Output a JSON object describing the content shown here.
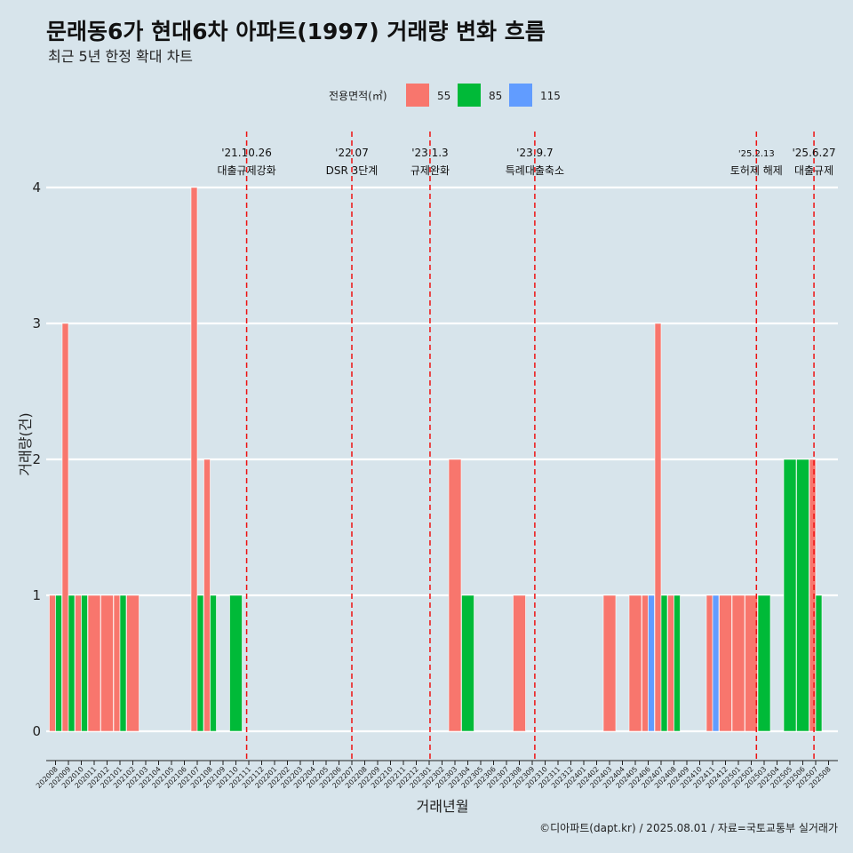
{
  "chart_data": {
    "type": "bar",
    "title": "문래동6가 현대6차 아파트(1997) 거래량 변화 흐름",
    "subtitle": "최근 5년 한정 확대 차트",
    "xlabel": "거래년월",
    "ylabel": "거래량(건)",
    "caption": "©디아파트(dapt.kr) / 2025.08.01 / 자료=국토교통부 실거래가",
    "ylim": [
      0,
      4
    ],
    "yticks": [
      0,
      1,
      2,
      3,
      4
    ],
    "legend": {
      "title": "전용면적(㎡)",
      "position": "top",
      "entries": [
        {
          "label": "55",
          "color": "#f8766d"
        },
        {
          "label": "85",
          "color": "#00ba38"
        },
        {
          "label": "115",
          "color": "#619cff"
        }
      ]
    },
    "categories": [
      "202008",
      "202009",
      "202010",
      "202011",
      "202012",
      "202101",
      "202102",
      "202103",
      "202104",
      "202105",
      "202106",
      "202107",
      "202108",
      "202109",
      "202110",
      "202111",
      "202112",
      "202201",
      "202202",
      "202203",
      "202204",
      "202205",
      "202206",
      "202207",
      "202208",
      "202209",
      "202210",
      "202211",
      "202212",
      "202301",
      "202302",
      "202303",
      "202304",
      "202305",
      "202306",
      "202307",
      "202308",
      "202309",
      "202310",
      "202311",
      "202312",
      "202401",
      "202402",
      "202403",
      "202404",
      "202405",
      "202406",
      "202407",
      "202408",
      "202409",
      "202410",
      "202411",
      "202412",
      "202501",
      "202502",
      "202503",
      "202504",
      "202505",
      "202506",
      "202507",
      "202508"
    ],
    "series": [
      {
        "name": "55",
        "values": [
          1,
          3,
          1,
          1,
          1,
          1,
          1,
          0,
          0,
          0,
          0,
          4,
          2,
          0,
          0,
          0,
          0,
          0,
          0,
          0,
          0,
          0,
          0,
          0,
          0,
          0,
          0,
          0,
          0,
          0,
          0,
          2,
          0,
          0,
          0,
          0,
          1,
          0,
          0,
          0,
          0,
          0,
          0,
          1,
          0,
          1,
          1,
          3,
          1,
          0,
          0,
          1,
          1,
          1,
          1,
          0,
          0,
          0,
          0,
          2,
          0
        ]
      },
      {
        "name": "85",
        "values": [
          1,
          1,
          1,
          0,
          0,
          1,
          0,
          0,
          0,
          0,
          0,
          1,
          1,
          0,
          1,
          0,
          0,
          0,
          0,
          0,
          0,
          0,
          0,
          0,
          0,
          0,
          0,
          0,
          0,
          0,
          0,
          0,
          1,
          0,
          0,
          0,
          0,
          0,
          0,
          0,
          0,
          0,
          0,
          0,
          0,
          0,
          0,
          1,
          1,
          0,
          0,
          0,
          0,
          0,
          0,
          1,
          0,
          2,
          2,
          1,
          0
        ]
      },
      {
        "name": "115",
        "values": [
          0,
          0,
          0,
          0,
          0,
          0,
          0,
          0,
          0,
          0,
          0,
          0,
          0,
          0,
          0,
          0,
          0,
          0,
          0,
          0,
          0,
          0,
          0,
          0,
          0,
          0,
          0,
          0,
          0,
          0,
          0,
          0,
          0,
          0,
          0,
          0,
          0,
          0,
          0,
          0,
          0,
          0,
          0,
          0,
          0,
          0,
          1,
          0,
          0,
          0,
          0,
          1,
          0,
          0,
          0,
          0,
          0,
          0,
          0,
          0,
          0
        ]
      }
    ],
    "events": [
      {
        "date": "2021-10-26",
        "line1": "'21.10.26",
        "line2": "대출규제강화"
      },
      {
        "date": "2022-07-01",
        "line1": "'22.07",
        "line2": "DSR 3단계"
      },
      {
        "date": "2023-01-03",
        "line1": "'23.1.3",
        "line2": "규제완화"
      },
      {
        "date": "2023-09-07",
        "line1": "'23.9.7",
        "line2": "특례대출축소"
      },
      {
        "date": "2025-02-13",
        "line1": "'25.2.13",
        "line2": "토허제 해제"
      },
      {
        "date": "2025-06-27",
        "line1": "'25.6.27",
        "line2": "대출규제"
      }
    ]
  }
}
